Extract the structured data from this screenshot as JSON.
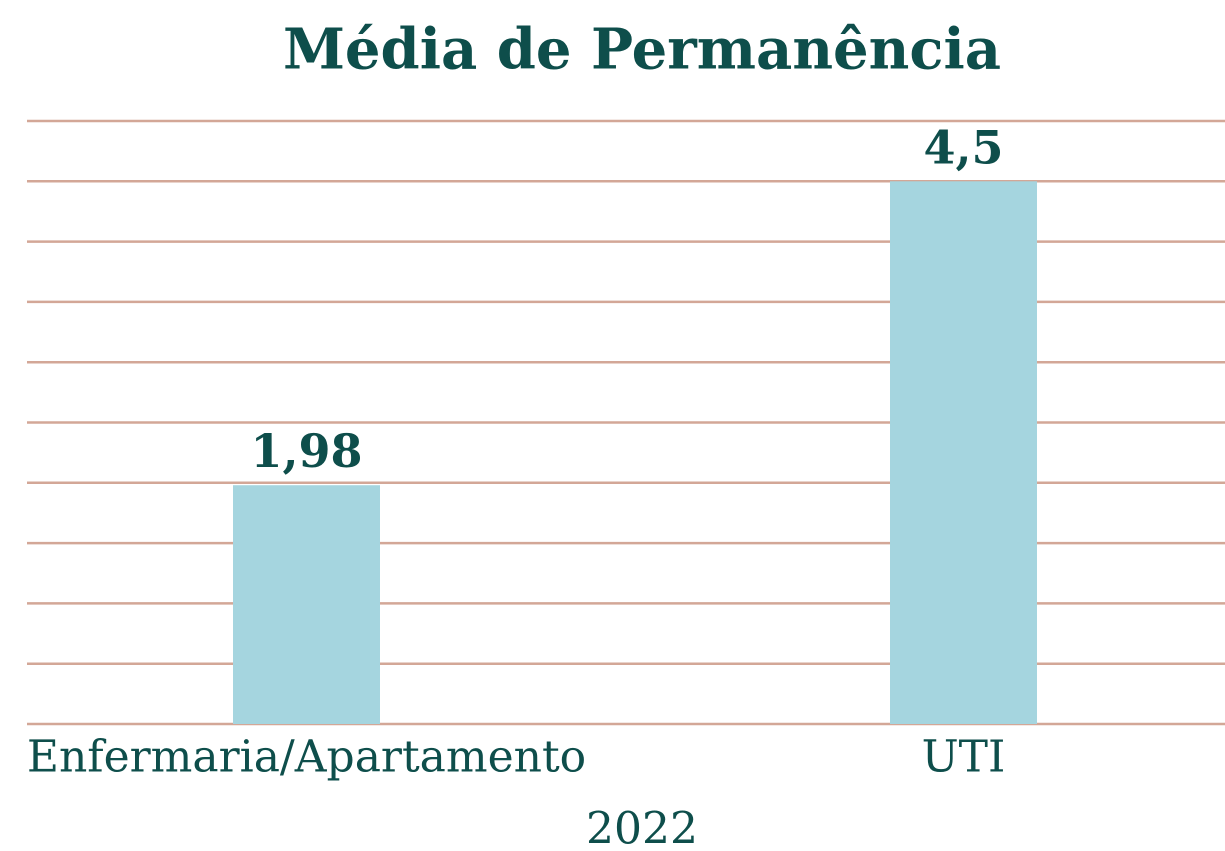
{
  "chart_data": {
    "type": "bar",
    "title": "Média de Permanência",
    "categories": [
      "Enfermaria/Apartamento",
      "UTI"
    ],
    "values": [
      1.98,
      4.5
    ],
    "value_labels": [
      "1,98",
      "4,5"
    ],
    "color": "#a5d5df",
    "xlabel": "2022",
    "ylim": [
      0,
      5
    ],
    "yticks": [
      0,
      0.5,
      1,
      1.5,
      2,
      2.5,
      3,
      3.5,
      4,
      4.5,
      5
    ],
    "grid": true
  }
}
